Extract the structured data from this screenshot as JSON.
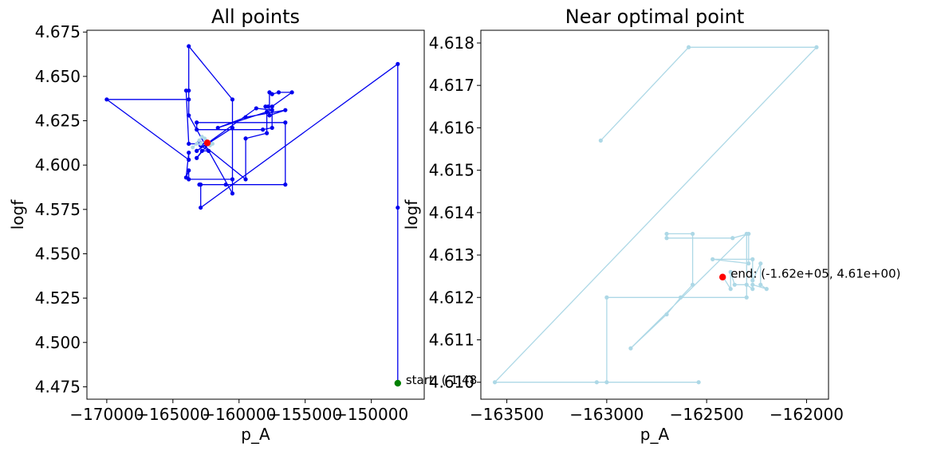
{
  "chart_data": [
    {
      "type": "line",
      "title": "All points",
      "xlabel": "p_A",
      "ylabel": "logf",
      "xlim": [
        -171500,
        -146000
      ],
      "ylim": [
        4.468,
        4.676
      ],
      "xticks": [
        -170000,
        -165000,
        -160000,
        -155000,
        -150000
      ],
      "xtick_labels": [
        "−170000",
        "−165000",
        "−160000",
        "−155000",
        "−150000"
      ],
      "yticks": [
        4.475,
        4.5,
        4.525,
        4.55,
        4.575,
        4.6,
        4.625,
        4.65,
        4.675
      ],
      "ytick_labels": [
        "4.475",
        "4.500",
        "4.525",
        "4.550",
        "4.575",
        "4.600",
        "4.625",
        "4.650",
        "4.675"
      ],
      "grid": false,
      "series": [
        {
          "color": "#0000ee",
          "x": [
            -148000,
            -148000,
            -148000,
            -162900,
            -162900,
            -163000,
            -161000,
            -156500,
            -156500,
            -163200,
            -163200,
            -158200,
            -157500,
            -157500,
            -158700,
            -163200,
            -160500,
            -160500,
            -163800,
            -163800,
            -164000,
            -163800,
            -163800,
            -170000,
            -163800,
            -163800,
            -160500,
            -160500,
            -163800,
            -163800,
            -164000,
            -163800,
            -162300,
            -163200,
            -162800,
            -162300,
            -162900,
            -163000,
            -159500,
            -159500,
            -157900,
            -157900,
            -161600,
            -159500,
            -156500,
            -157700,
            -157700,
            -157500,
            -157000,
            -156000,
            -157500,
            -157800,
            -158000
          ],
          "y": [
            4.477,
            4.576,
            4.657,
            4.576,
            4.589,
            4.589,
            4.589,
            4.589,
            4.624,
            4.624,
            4.62,
            4.62,
            4.621,
            4.631,
            4.632,
            4.608,
            4.621,
            4.592,
            4.592,
            4.597,
            4.593,
            4.607,
            4.603,
            4.637,
            4.637,
            4.667,
            4.637,
            4.584,
            4.628,
            4.642,
            4.642,
            4.612,
            4.612,
            4.604,
            4.608,
            4.608,
            4.611,
            4.613,
            4.592,
            4.615,
            4.618,
            4.63,
            4.621,
            4.627,
            4.631,
            4.628,
            4.641,
            4.64,
            4.641,
            4.641,
            4.633,
            4.633,
            4.633
          ]
        }
      ],
      "near_points": {
        "color": "#add8e6",
        "x": [
          -163500,
          -163200,
          -163000,
          -162800,
          -162600,
          -162400,
          -162200,
          -162000,
          -162300,
          -162500,
          -162900
        ],
        "y": [
          4.61,
          4.612,
          4.614,
          4.616,
          4.615,
          4.613,
          4.611,
          4.612,
          4.613,
          4.614,
          4.612
        ]
      },
      "markers": [
        {
          "name": "end",
          "x": -162400,
          "y": 4.6125,
          "color": "#ff0000"
        },
        {
          "name": "start",
          "x": -148000,
          "y": 4.477,
          "color": "#008000",
          "label": "start: (-1.48"
        }
      ]
    },
    {
      "type": "line",
      "title": "Near optimal point",
      "xlabel": "p_A",
      "ylabel": "logf",
      "xlim": [
        -163630,
        -161890
      ],
      "ylim": [
        4.6096,
        4.6183
      ],
      "xticks": [
        -163500,
        -163000,
        -162500,
        -162000
      ],
      "xtick_labels": [
        "−163500",
        "−163000",
        "−162500",
        "−162000"
      ],
      "yticks": [
        4.61,
        4.611,
        4.612,
        4.613,
        4.614,
        4.615,
        4.616,
        4.617,
        4.618
      ],
      "ytick_labels": [
        "4.610",
        "4.611",
        "4.612",
        "4.613",
        "4.614",
        "4.615",
        "4.616",
        "4.617",
        "4.618"
      ],
      "grid": false,
      "series": [
        {
          "color": "#add8e6",
          "x": [
            -163030,
            -162590,
            -161950,
            -163560,
            -162540,
            -163050,
            -163000,
            -163000,
            -162300,
            -162300,
            -162880,
            -162700,
            -162630,
            -162570,
            -162570,
            -162700,
            -162700,
            -162370,
            -162290,
            -162290,
            -162470,
            -162270,
            -162270,
            -162230,
            -162230,
            -162200,
            -162270,
            -162270,
            -162300,
            -162360,
            -162380,
            -162380,
            -162420
          ],
          "y": [
            4.6157,
            4.6179,
            4.6179,
            4.61,
            4.61,
            4.61,
            4.61,
            4.612,
            4.612,
            4.6135,
            4.6108,
            4.6116,
            4.612,
            4.6123,
            4.6135,
            4.6135,
            4.6134,
            4.6134,
            4.6135,
            4.6128,
            4.6129,
            4.6129,
            4.6124,
            4.6128,
            4.6123,
            4.6122,
            4.6123,
            4.6122,
            4.6123,
            4.6123,
            4.6126,
            4.6122,
            4.6125
          ]
        }
      ],
      "markers": [
        {
          "name": "end",
          "x": -162420,
          "y": 4.61248,
          "color": "#ff0000",
          "label": "end: (-1.62e+05, 4.61e+00)"
        }
      ]
    }
  ]
}
